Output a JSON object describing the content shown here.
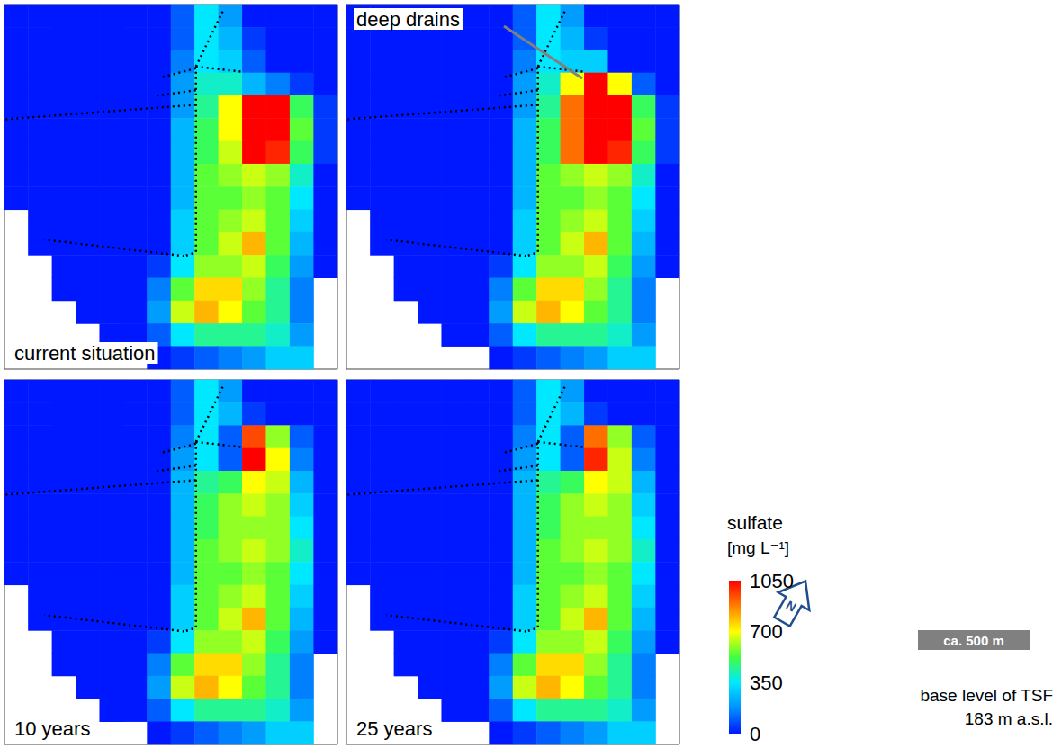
{
  "chart_data": {
    "type": "heatmap",
    "panels": [
      {
        "label": "current situation",
        "cells": [
          [
            0,
            0,
            0,
            0,
            0,
            0,
            0,
            100,
            350,
            200,
            0,
            0,
            0,
            0
          ],
          [
            0,
            0,
            0,
            0,
            0,
            0,
            0,
            100,
            350,
            250,
            50,
            0,
            0,
            0
          ],
          [
            0,
            0,
            0,
            0,
            0,
            0,
            0,
            150,
            350,
            300,
            100,
            0,
            0,
            0
          ],
          [
            0,
            0,
            0,
            0,
            0,
            0,
            0,
            200,
            400,
            400,
            250,
            150,
            50,
            0
          ],
          [
            0,
            0,
            0,
            0,
            0,
            0,
            0,
            200,
            450,
            700,
            1050,
            1050,
            500,
            50
          ],
          [
            0,
            0,
            0,
            0,
            0,
            0,
            0,
            250,
            500,
            700,
            1050,
            1050,
            550,
            50
          ],
          [
            0,
            0,
            0,
            0,
            0,
            0,
            0,
            250,
            500,
            650,
            1050,
            1000,
            500,
            50
          ],
          [
            0,
            0,
            0,
            0,
            0,
            0,
            0,
            250,
            550,
            600,
            650,
            600,
            400,
            0
          ],
          [
            0,
            0,
            0,
            0,
            0,
            0,
            0,
            250,
            550,
            550,
            600,
            550,
            350,
            0
          ],
          [
            null,
            0,
            0,
            0,
            0,
            0,
            0,
            300,
            550,
            600,
            650,
            550,
            300,
            0
          ],
          [
            null,
            0,
            0,
            0,
            0,
            0,
            0,
            300,
            550,
            650,
            800,
            550,
            250,
            0
          ],
          [
            null,
            null,
            0,
            0,
            0,
            0,
            50,
            350,
            600,
            600,
            650,
            500,
            200,
            0
          ],
          [
            null,
            null,
            0,
            0,
            0,
            0,
            150,
            550,
            750,
            750,
            600,
            450,
            150,
            null
          ],
          [
            null,
            null,
            null,
            0,
            0,
            0,
            200,
            650,
            800,
            700,
            550,
            450,
            150,
            null
          ],
          [
            null,
            null,
            null,
            null,
            0,
            0,
            100,
            350,
            450,
            450,
            450,
            400,
            200,
            null
          ],
          [
            null,
            null,
            null,
            null,
            null,
            null,
            0,
            50,
            100,
            150,
            200,
            300,
            300,
            null
          ]
        ]
      },
      {
        "annotation": "deep drains",
        "cells": [
          [
            0,
            0,
            0,
            0,
            0,
            0,
            0,
            100,
            350,
            200,
            0,
            0,
            0,
            0
          ],
          [
            0,
            0,
            0,
            0,
            0,
            0,
            0,
            100,
            350,
            250,
            50,
            0,
            0,
            0
          ],
          [
            0,
            0,
            0,
            0,
            0,
            0,
            0,
            150,
            350,
            300,
            300,
            0,
            0,
            0
          ],
          [
            0,
            0,
            0,
            0,
            0,
            0,
            0,
            200,
            400,
            700,
            1050,
            700,
            100,
            0
          ],
          [
            0,
            0,
            0,
            0,
            0,
            0,
            0,
            200,
            450,
            900,
            1050,
            1050,
            500,
            50
          ],
          [
            0,
            0,
            0,
            0,
            0,
            0,
            0,
            250,
            500,
            900,
            1050,
            1050,
            550,
            50
          ],
          [
            0,
            0,
            0,
            0,
            0,
            0,
            0,
            250,
            500,
            900,
            1050,
            1000,
            500,
            50
          ],
          [
            0,
            0,
            0,
            0,
            0,
            0,
            0,
            250,
            550,
            600,
            650,
            600,
            400,
            0
          ],
          [
            0,
            0,
            0,
            0,
            0,
            0,
            0,
            250,
            550,
            550,
            600,
            550,
            350,
            0
          ],
          [
            null,
            0,
            0,
            0,
            0,
            0,
            0,
            300,
            550,
            600,
            650,
            550,
            300,
            0
          ],
          [
            null,
            0,
            0,
            0,
            0,
            0,
            0,
            300,
            550,
            650,
            800,
            550,
            250,
            0
          ],
          [
            null,
            null,
            0,
            0,
            0,
            0,
            50,
            350,
            600,
            600,
            650,
            500,
            200,
            0
          ],
          [
            null,
            null,
            0,
            0,
            0,
            0,
            150,
            550,
            750,
            750,
            600,
            450,
            150,
            null
          ],
          [
            null,
            null,
            null,
            0,
            0,
            0,
            200,
            650,
            800,
            700,
            550,
            450,
            150,
            null
          ],
          [
            null,
            null,
            null,
            null,
            0,
            0,
            100,
            350,
            450,
            450,
            450,
            400,
            200,
            null
          ],
          [
            null,
            null,
            null,
            null,
            null,
            null,
            0,
            50,
            100,
            150,
            200,
            300,
            300,
            null
          ]
        ]
      },
      {
        "label": "10 years",
        "cells": [
          [
            0,
            0,
            0,
            0,
            0,
            0,
            0,
            100,
            350,
            200,
            0,
            0,
            0,
            0
          ],
          [
            0,
            0,
            0,
            0,
            0,
            0,
            0,
            100,
            350,
            250,
            50,
            0,
            0,
            0
          ],
          [
            0,
            0,
            0,
            0,
            0,
            0,
            0,
            150,
            350,
            100,
            950,
            600,
            100,
            0
          ],
          [
            0,
            0,
            0,
            0,
            0,
            0,
            0,
            200,
            350,
            100,
            1050,
            700,
            150,
            0
          ],
          [
            0,
            0,
            0,
            0,
            0,
            0,
            0,
            250,
            450,
            500,
            700,
            650,
            250,
            0
          ],
          [
            0,
            0,
            0,
            0,
            0,
            0,
            0,
            250,
            500,
            600,
            650,
            600,
            300,
            0
          ],
          [
            0,
            0,
            0,
            0,
            0,
            0,
            0,
            250,
            500,
            600,
            600,
            600,
            350,
            0
          ],
          [
            0,
            0,
            0,
            0,
            0,
            0,
            0,
            250,
            550,
            600,
            650,
            600,
            400,
            0
          ],
          [
            0,
            0,
            0,
            0,
            0,
            0,
            0,
            250,
            550,
            550,
            600,
            550,
            350,
            0
          ],
          [
            null,
            0,
            0,
            0,
            0,
            0,
            0,
            300,
            550,
            600,
            650,
            550,
            300,
            0
          ],
          [
            null,
            0,
            0,
            0,
            0,
            0,
            0,
            300,
            550,
            650,
            800,
            550,
            250,
            0
          ],
          [
            null,
            null,
            0,
            0,
            0,
            0,
            50,
            350,
            600,
            600,
            650,
            500,
            200,
            0
          ],
          [
            null,
            null,
            0,
            0,
            0,
            0,
            150,
            550,
            750,
            750,
            600,
            450,
            150,
            null
          ],
          [
            null,
            null,
            null,
            0,
            0,
            0,
            200,
            650,
            800,
            700,
            550,
            450,
            150,
            null
          ],
          [
            null,
            null,
            null,
            null,
            0,
            0,
            100,
            350,
            450,
            450,
            450,
            400,
            200,
            null
          ],
          [
            null,
            null,
            null,
            null,
            null,
            null,
            0,
            50,
            100,
            150,
            200,
            300,
            300,
            null
          ]
        ]
      },
      {
        "label": "25 years",
        "cells": [
          [
            0,
            0,
            0,
            0,
            0,
            0,
            0,
            100,
            350,
            200,
            0,
            0,
            0,
            0
          ],
          [
            0,
            0,
            0,
            0,
            0,
            0,
            0,
            100,
            350,
            250,
            50,
            0,
            0,
            0
          ],
          [
            0,
            0,
            0,
            0,
            0,
            0,
            0,
            150,
            350,
            100,
            900,
            600,
            100,
            0
          ],
          [
            0,
            0,
            0,
            0,
            0,
            0,
            0,
            200,
            350,
            100,
            1000,
            650,
            150,
            0
          ],
          [
            0,
            0,
            0,
            0,
            0,
            0,
            0,
            250,
            450,
            500,
            700,
            650,
            250,
            0
          ],
          [
            0,
            0,
            0,
            0,
            0,
            0,
            0,
            250,
            500,
            600,
            650,
            600,
            300,
            0
          ],
          [
            0,
            0,
            0,
            0,
            0,
            0,
            0,
            250,
            500,
            600,
            600,
            600,
            350,
            0
          ],
          [
            0,
            0,
            0,
            0,
            0,
            0,
            0,
            250,
            550,
            600,
            650,
            600,
            400,
            0
          ],
          [
            0,
            0,
            0,
            0,
            0,
            0,
            0,
            250,
            550,
            550,
            600,
            550,
            350,
            0
          ],
          [
            null,
            0,
            0,
            0,
            0,
            0,
            0,
            300,
            550,
            600,
            650,
            550,
            300,
            0
          ],
          [
            null,
            0,
            0,
            0,
            0,
            0,
            0,
            300,
            550,
            650,
            800,
            550,
            250,
            0
          ],
          [
            null,
            null,
            0,
            0,
            0,
            0,
            50,
            350,
            600,
            600,
            650,
            500,
            200,
            0
          ],
          [
            null,
            null,
            0,
            0,
            0,
            0,
            150,
            550,
            750,
            750,
            600,
            450,
            150,
            null
          ],
          [
            null,
            null,
            null,
            0,
            0,
            0,
            200,
            650,
            800,
            700,
            550,
            450,
            150,
            null
          ],
          [
            null,
            null,
            null,
            null,
            0,
            0,
            100,
            350,
            450,
            450,
            450,
            400,
            200,
            null
          ],
          [
            null,
            null,
            null,
            null,
            null,
            null,
            0,
            50,
            100,
            150,
            200,
            300,
            300,
            null
          ]
        ]
      }
    ],
    "colorbar": {
      "title": "sulfate",
      "unit": "[mg L⁻¹]",
      "range": [
        0,
        1050
      ],
      "ticks": [
        0,
        350,
        700,
        1050
      ],
      "colors": [
        "#0018ff",
        "#0090ff",
        "#00e8ff",
        "#40ff40",
        "#ffff00",
        "#ff8000",
        "#ff0000"
      ]
    },
    "north": "N",
    "scale_bar": "ca. 500 m",
    "note": [
      "base level of TSF",
      "183 m a.s.l."
    ]
  }
}
